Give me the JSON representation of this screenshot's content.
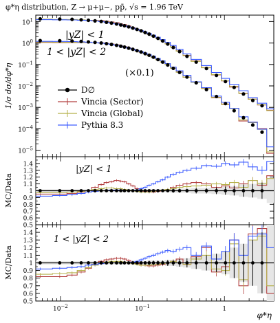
{
  "title": "φ*η distribution, Z → μ+μ−, pp̄, √s = 1.96 TeV",
  "xlabel": "φ*η",
  "colors": {
    "data": "#000000",
    "sector": "#b34040",
    "global": "#b5b04a",
    "pythia": "#3d5cff"
  },
  "chart_data": [
    {
      "type": "line",
      "panel": "main",
      "ylabel": "1/σ dσ/dφ*η",
      "xscale": "log",
      "yscale": "log",
      "xlim": [
        0.005,
        4.0
      ],
      "ylim": [
        5e-06,
        20
      ],
      "annotations": [
        "|yZ| < 1",
        "1 < |yZ| < 2",
        "(×0.1)"
      ],
      "legend": {
        "placement": "center-left",
        "entries": [
          "D∅",
          "Vincia (Sector)",
          "Vincia (Global)",
          "Pythia 8.3"
        ]
      },
      "bin_edges": [
        0.004,
        0.008,
        0.012,
        0.016,
        0.02,
        0.024,
        0.029,
        0.034,
        0.039,
        0.045,
        0.052,
        0.057,
        0.064,
        0.072,
        0.081,
        0.091,
        0.102,
        0.114,
        0.128,
        0.145,
        0.165,
        0.189,
        0.219,
        0.258,
        0.312,
        0.391,
        0.524,
        0.695,
        0.918,
        1.153,
        1.496,
        1.947,
        2.522,
        3.277,
        5.0
      ],
      "series": [
        {
          "name": "D∅ |yZ|<1",
          "values": [
            13.4,
            13.0,
            12.7,
            12.1,
            11.5,
            10.8,
            10.1,
            9.3,
            8.5,
            7.7,
            7.0,
            6.4,
            5.7,
            5.0,
            4.3,
            3.7,
            3.1,
            2.6,
            2.1,
            1.65,
            1.25,
            0.9,
            0.62,
            0.4,
            0.24,
            0.13,
            0.065,
            0.031,
            0.016,
            0.0085,
            0.0042,
            0.0021,
            0.0012,
            0.0006
          ]
        },
        {
          "name": "D∅ 1<|yZ|<2 (×0.1)",
          "values": [
            1.3,
            1.27,
            1.24,
            1.19,
            1.13,
            1.07,
            1.0,
            0.93,
            0.86,
            0.78,
            0.71,
            0.65,
            0.58,
            0.51,
            0.44,
            0.38,
            0.32,
            0.27,
            0.22,
            0.17,
            0.13,
            0.095,
            0.066,
            0.043,
            0.026,
            0.014,
            0.0068,
            0.0032,
            0.0015,
            0.0007,
            0.00033,
            0.00015,
            7e-05,
            1.2e-05
          ]
        }
      ]
    },
    {
      "type": "line",
      "panel": "ratio",
      "ylabel": "MC/Data",
      "annotation": "|yZ| < 1",
      "ylim": [
        0.5,
        1.5
      ],
      "yticks": [
        0.5,
        0.6,
        0.7,
        0.8,
        0.9,
        1,
        1.1,
        1.2,
        1.3,
        1.4
      ],
      "series": [
        {
          "name": "Vincia (Sector)",
          "values": [
            0.95,
            0.95,
            0.96,
            0.98,
            1.0,
            1.05,
            1.09,
            1.12,
            1.13,
            1.15,
            1.14,
            1.13,
            1.1,
            1.07,
            1.03,
            1.0,
            0.99,
            0.98,
            0.98,
            0.99,
            1.0,
            1.02,
            1.05,
            1.08,
            1.1,
            1.12,
            1.1,
            1.05,
            1.07,
            1.04,
            1.1,
            1.15,
            1.08,
            1.22
          ]
        },
        {
          "name": "Vincia (Global)",
          "values": [
            0.97,
            0.97,
            0.98,
            0.99,
            1.0,
            1.02,
            1.03,
            1.04,
            1.04,
            1.03,
            1.03,
            1.02,
            1.01,
            1.0,
            0.99,
            0.98,
            0.98,
            0.98,
            0.99,
            1.0,
            1.01,
            1.02,
            1.03,
            1.05,
            1.06,
            1.07,
            1.08,
            1.1,
            1.09,
            1.12,
            1.05,
            1.15,
            1.1,
            1.18
          ]
        },
        {
          "name": "Pythia 8.3",
          "values": [
            0.92,
            0.93,
            0.94,
            0.96,
            0.98,
            0.99,
            1.0,
            1.0,
            1.01,
            1.01,
            1.01,
            1.0,
            1.0,
            1.0,
            1.01,
            1.03,
            1.05,
            1.08,
            1.1,
            1.13,
            1.16,
            1.2,
            1.24,
            1.27,
            1.3,
            1.33,
            1.37,
            1.36,
            1.4,
            1.38,
            1.42,
            1.35,
            1.3,
            1.43
          ]
        }
      ],
      "data_errors": [
        0.02,
        0.02,
        0.02,
        0.02,
        0.02,
        0.02,
        0.02,
        0.02,
        0.02,
        0.02,
        0.02,
        0.02,
        0.02,
        0.02,
        0.02,
        0.02,
        0.02,
        0.02,
        0.02,
        0.02,
        0.02,
        0.02,
        0.03,
        0.03,
        0.03,
        0.04,
        0.04,
        0.05,
        0.06,
        0.07,
        0.09,
        0.1,
        0.12,
        0.18
      ]
    },
    {
      "type": "line",
      "panel": "ratio",
      "ylabel": "MC/Data",
      "annotation": "1 < |yZ| < 2",
      "ylim": [
        0.5,
        1.5
      ],
      "xticks": [
        "10−2",
        "10−1",
        "1"
      ],
      "yticks": [
        0.5,
        0.6,
        0.7,
        0.8,
        0.9,
        1,
        1.1,
        1.2,
        1.3,
        1.4
      ],
      "series": [
        {
          "name": "Vincia (Sector)",
          "values": [
            0.82,
            0.82,
            0.84,
            0.88,
            0.93,
            0.98,
            1.02,
            1.04,
            1.05,
            1.06,
            1.06,
            1.05,
            1.03,
            1.01,
            0.99,
            0.97,
            0.97,
            0.96,
            0.96,
            0.97,
            0.98,
            1.0,
            1.02,
            1.05,
            0.98,
            1.08,
            1.2,
            0.88,
            0.95,
            1.3,
            0.7,
            1.38,
            1.45,
            0.6
          ]
        },
        {
          "name": "Vincia (Global)",
          "values": [
            0.85,
            0.86,
            0.87,
            0.9,
            0.94,
            0.97,
            1.0,
            1.01,
            1.02,
            1.02,
            1.02,
            1.01,
            1.0,
            0.99,
            0.98,
            0.97,
            0.97,
            0.97,
            0.98,
            0.98,
            0.99,
            1.0,
            1.02,
            1.0,
            0.98,
            1.05,
            1.1,
            0.92,
            0.9,
            1.25,
            0.78,
            1.3,
            1.35,
            0.7
          ]
        },
        {
          "name": "Pythia 8.3",
          "values": [
            0.92,
            0.93,
            0.94,
            0.95,
            0.97,
            0.98,
            0.99,
            1.0,
            1.0,
            1.0,
            1.0,
            1.0,
            1.0,
            1.01,
            1.02,
            1.04,
            1.06,
            1.08,
            1.1,
            1.12,
            1.14,
            1.16,
            1.15,
            1.18,
            1.2,
            1.1,
            1.22,
            1.05,
            1.15,
            1.3,
            1.1,
            1.35,
            1.38,
            1.2
          ]
        }
      ],
      "data_errors": [
        0.02,
        0.02,
        0.02,
        0.02,
        0.02,
        0.02,
        0.02,
        0.02,
        0.02,
        0.02,
        0.02,
        0.02,
        0.02,
        0.02,
        0.02,
        0.02,
        0.02,
        0.03,
        0.03,
        0.03,
        0.03,
        0.04,
        0.04,
        0.05,
        0.06,
        0.08,
        0.1,
        0.12,
        0.15,
        0.2,
        0.25,
        0.3,
        0.4,
        0.5
      ]
    }
  ]
}
